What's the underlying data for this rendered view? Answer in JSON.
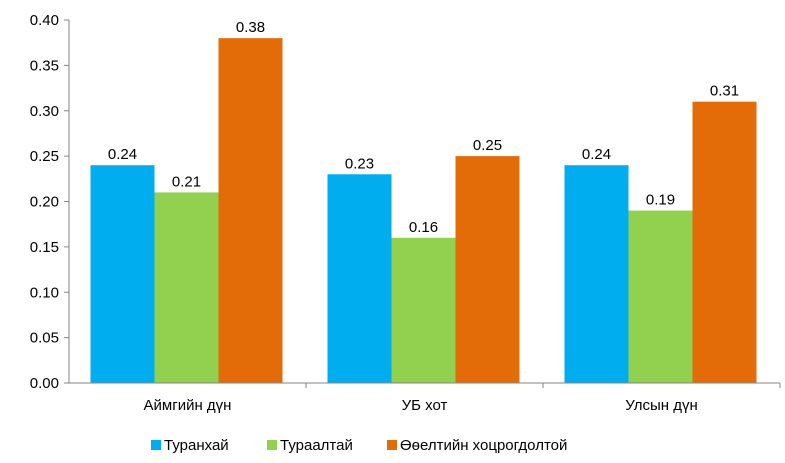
{
  "chart_data": {
    "type": "bar",
    "categories": [
      "Аймгийн дүн",
      "УБ хот",
      "Улсын дүн"
    ],
    "series": [
      {
        "name": "Туранхай",
        "values": [
          0.24,
          0.23,
          0.24
        ],
        "color": "#00aeef"
      },
      {
        "name": "Тураалтай",
        "values": [
          0.21,
          0.16,
          0.19
        ],
        "color": "#92d050"
      },
      {
        "name": "Өөелтийн хоцрогдолтой",
        "values": [
          0.38,
          0.25,
          0.31
        ],
        "color": "#e36c09"
      }
    ],
    "data_labels": [
      [
        "0.24",
        "0.23",
        "0.24"
      ],
      [
        "0.21",
        "0.16",
        "0.19"
      ],
      [
        "0.38",
        "0.25",
        "0.31"
      ]
    ],
    "ylim": [
      0,
      0.4
    ],
    "yticks": [
      "0.00",
      "0.05",
      "0.10",
      "0.15",
      "0.20",
      "0.25",
      "0.30",
      "0.35",
      "0.40"
    ],
    "ytick_values": [
      0,
      0.05,
      0.1,
      0.15,
      0.2,
      0.25,
      0.3,
      0.35,
      0.4
    ],
    "grid": false,
    "legend_position": "bottom",
    "title": "",
    "xlabel": "",
    "ylabel": ""
  }
}
